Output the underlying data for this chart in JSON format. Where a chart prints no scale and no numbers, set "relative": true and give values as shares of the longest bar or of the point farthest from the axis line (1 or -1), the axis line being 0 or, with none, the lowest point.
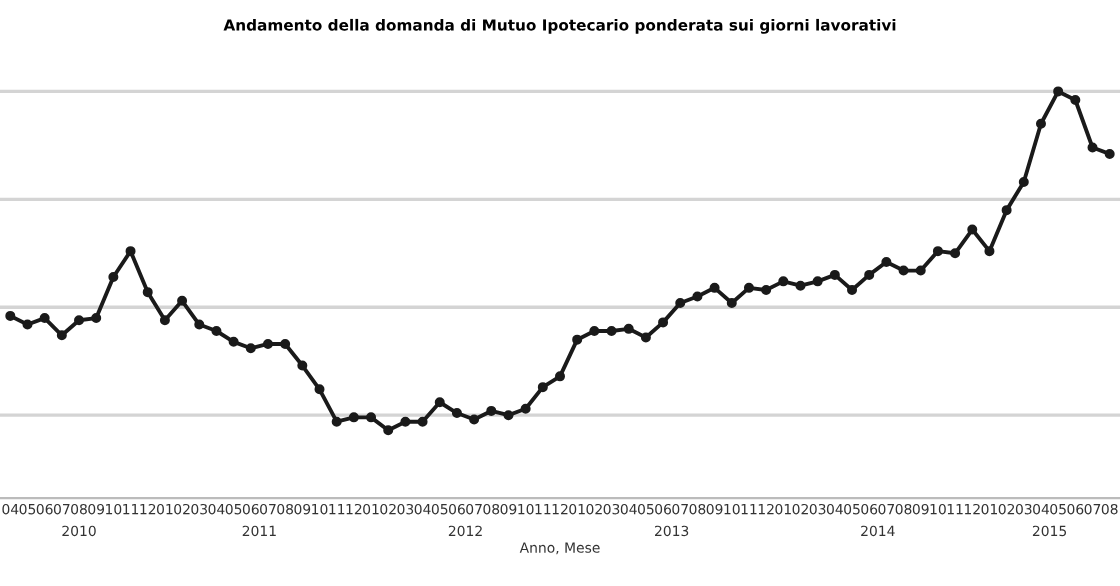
{
  "chart_data": {
    "type": "line",
    "title": "Andamento della domanda di Mutuo Ipotecario ponderata sui giorni lavorativi",
    "xlabel": "Anno, Mese",
    "relative": true,
    "categories": [
      "04",
      "05",
      "06",
      "07",
      "08",
      "09",
      "10",
      "11",
      "12",
      "01",
      "02",
      "03",
      "04",
      "05",
      "06",
      "07",
      "08",
      "09",
      "10",
      "11",
      "12",
      "01",
      "02",
      "03",
      "04",
      "05",
      "06",
      "07",
      "08",
      "09",
      "10",
      "11",
      "12",
      "01",
      "02",
      "03",
      "04",
      "05",
      "06",
      "07",
      "08",
      "09",
      "10",
      "11",
      "12",
      "01",
      "02",
      "03",
      "04",
      "05",
      "06",
      "07",
      "08",
      "09",
      "10",
      "11",
      "12",
      "01",
      "02",
      "03",
      "04",
      "05",
      "06",
      "07",
      "08"
    ],
    "annotations": [
      "2010",
      "2011",
      "2012",
      "2013",
      "2014",
      "2015"
    ],
    "series": [
      {
        "color": "#1a1a1a",
        "values": [
          -0.04,
          -0.08,
          -0.05,
          -0.13,
          -0.06,
          -0.05,
          0.14,
          0.26,
          0.07,
          -0.06,
          0.03,
          -0.08,
          -0.11,
          -0.16,
          -0.19,
          -0.17,
          -0.17,
          -0.27,
          -0.38,
          -0.53,
          -0.51,
          -0.51,
          -0.57,
          -0.53,
          -0.53,
          -0.44,
          -0.49,
          -0.52,
          -0.48,
          -0.5,
          -0.47,
          -0.37,
          -0.32,
          -0.15,
          -0.11,
          -0.11,
          -0.1,
          -0.14,
          -0.07,
          0.02,
          0.05,
          0.09,
          0.02,
          0.09,
          0.08,
          0.12,
          0.1,
          0.12,
          0.15,
          0.08,
          0.15,
          0.21,
          0.17,
          0.17,
          0.26,
          0.25,
          0.36,
          0.26,
          0.45,
          0.58,
          0.85,
          1.0,
          0.96,
          0.74,
          0.71
        ]
      }
    ],
    "grid": "y",
    "marker": "circle",
    "line_style": "solid"
  }
}
